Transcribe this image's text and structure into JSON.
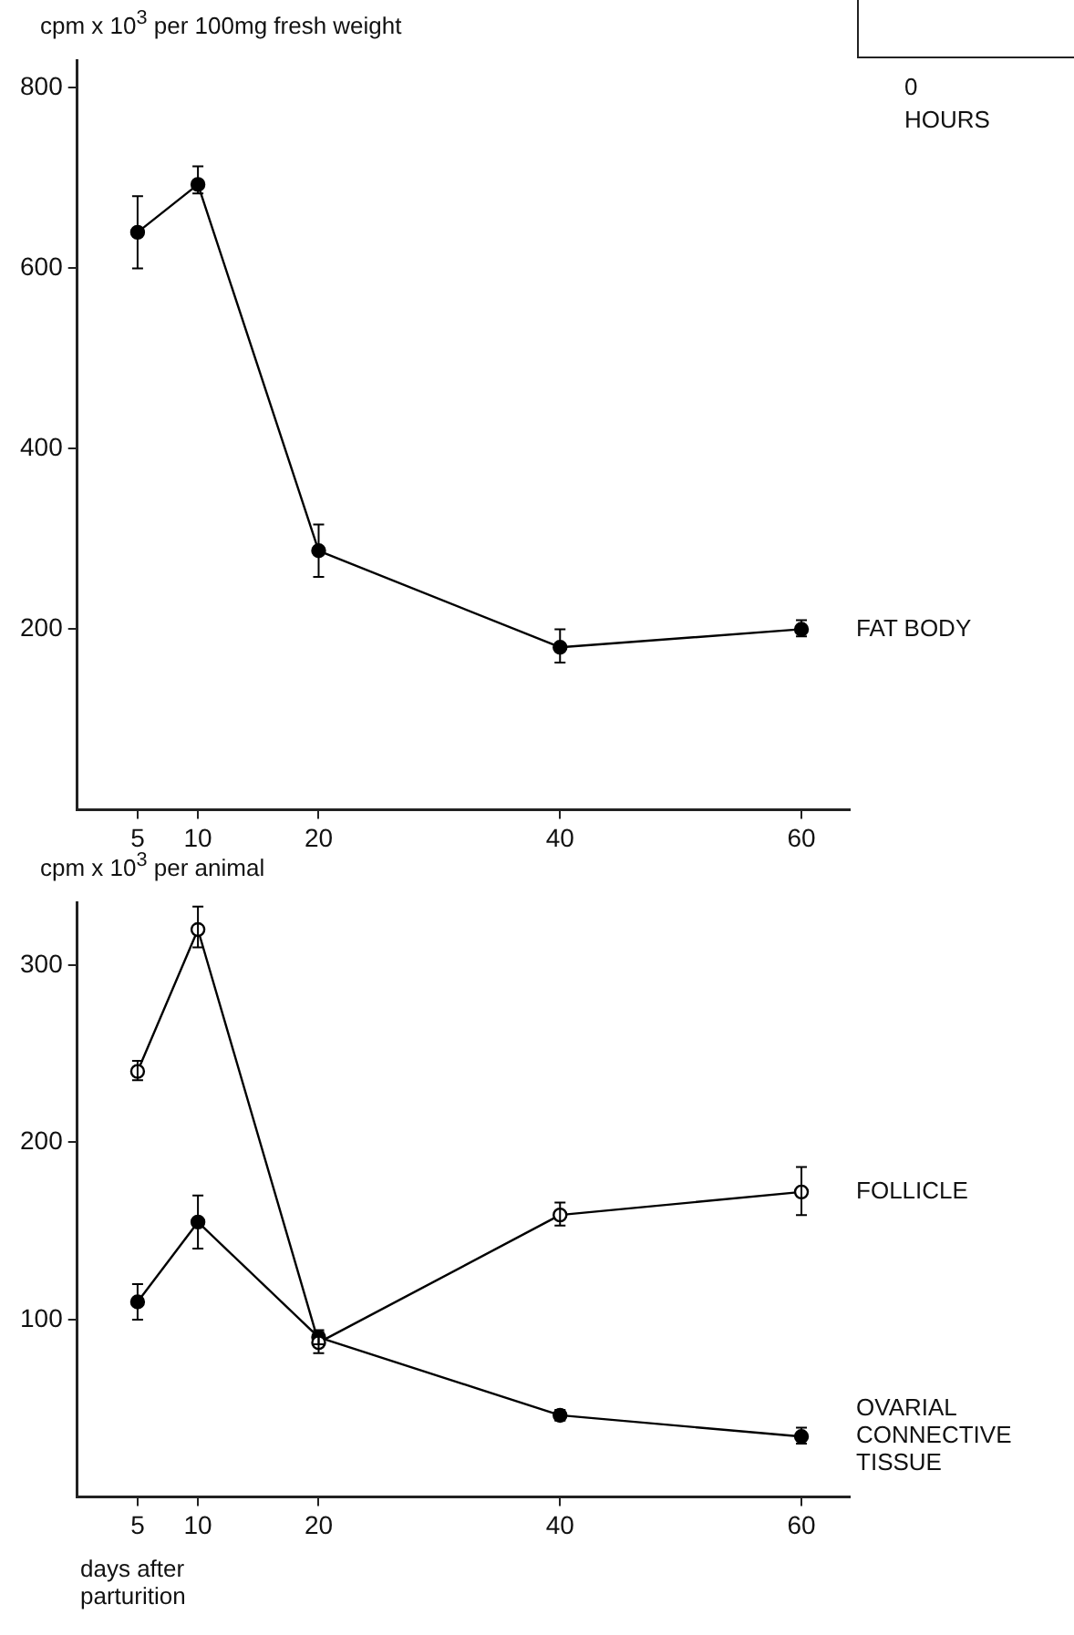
{
  "chart_data": [
    {
      "type": "line",
      "ylabel": "cpm x 10$^{3}$ per 100mg fresh weight",
      "x": [
        5,
        10,
        20,
        40,
        60
      ],
      "xlim": [
        0,
        64
      ],
      "xticks": [
        5,
        10,
        20,
        40,
        60
      ],
      "ylim": [
        0,
        830
      ],
      "yticks": [
        200,
        400,
        600,
        800
      ],
      "grid": false,
      "marker": "circle",
      "series": [
        {
          "name": "FAT BODY",
          "color": "#000000",
          "values": [
            640,
            693,
            287,
            180,
            200
          ],
          "errors": [
            [
              600,
              680
            ],
            [
              683,
              713
            ],
            [
              258,
              316
            ],
            [
              163,
              200
            ],
            [
              192,
              210
            ]
          ]
        }
      ]
    },
    {
      "type": "line",
      "ylabel": "cpm x 10$^{3}$ per animal",
      "xlabel": "days after parturition",
      "x": [
        5,
        10,
        20,
        40,
        60
      ],
      "xlim": [
        0,
        64
      ],
      "xticks": [
        5,
        10,
        20,
        40,
        60
      ],
      "ylim": [
        0,
        335
      ],
      "yticks": [
        100,
        200,
        300
      ],
      "grid": false,
      "series": [
        {
          "name": "FOLLICLE",
          "color": "#000000",
          "marker": "open circle",
          "values": [
            240,
            320,
            87,
            159,
            172
          ],
          "errors": [
            [
              235,
              246
            ],
            [
              310,
              333
            ],
            [
              81,
              93
            ],
            [
              153,
              166
            ],
            [
              159,
              186
            ]
          ]
        },
        {
          "name": "OVARIAL CONNECTIVE TISSUE",
          "color": "#000000",
          "marker": "circle",
          "values": [
            110,
            155,
            90,
            46,
            34
          ],
          "errors": [
            [
              100,
              120
            ],
            [
              140,
              170
            ],
            [
              86,
              94
            ],
            [
              43,
              49
            ],
            [
              30,
              39
            ]
          ]
        }
      ]
    },
    {
      "type": "other",
      "xlabel": "HOURS",
      "annotations": [
        "0"
      ]
    }
  ]
}
